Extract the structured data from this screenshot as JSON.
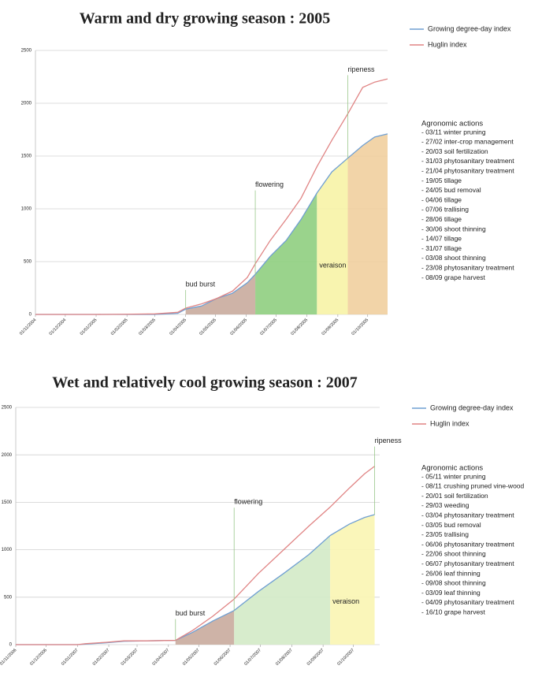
{
  "chart_data": [
    {
      "type": "line",
      "title": "Warm and dry growing season : 2005",
      "x": [
        0,
        30,
        61,
        92,
        120,
        143,
        151,
        167,
        182,
        198,
        213,
        221,
        236,
        252,
        267,
        283,
        298,
        314,
        329,
        341,
        354
      ],
      "xlim": [
        0,
        354
      ],
      "xticks": [
        {
          "value": 0,
          "label": "01/11/2004"
        },
        {
          "value": 30,
          "label": "01/12/2004"
        },
        {
          "value": 61,
          "label": "01/01/2005"
        },
        {
          "value": 92,
          "label": "01/02/2005"
        },
        {
          "value": 120,
          "label": "01/03/2005"
        },
        {
          "value": 151,
          "label": "01/04/2005"
        },
        {
          "value": 181,
          "label": "01/05/2005"
        },
        {
          "value": 212,
          "label": "01/06/2005"
        },
        {
          "value": 242,
          "label": "01/07/2005"
        },
        {
          "value": 273,
          "label": "01/08/2005"
        },
        {
          "value": 304,
          "label": "01/09/2005"
        },
        {
          "value": 334,
          "label": "01/10/2005"
        }
      ],
      "ylim": [
        0,
        2500
      ],
      "yticks": [
        0,
        500,
        1000,
        1500,
        2000,
        2500
      ],
      "grid": true,
      "series": [
        {
          "name": "Growing degree-day index",
          "color": "#6f9fd2",
          "values": [
            0,
            0,
            0,
            0,
            0,
            10,
            50,
            80,
            150,
            200,
            300,
            380,
            550,
            700,
            900,
            1150,
            1350,
            1480,
            1600,
            1680,
            1710
          ]
        },
        {
          "name": "Huglin index",
          "color": "#e08484",
          "values": [
            0,
            0,
            0,
            2,
            5,
            20,
            60,
            100,
            150,
            220,
            350,
            480,
            700,
            900,
            1100,
            1400,
            1650,
            1900,
            2150,
            2200,
            2230
          ]
        }
      ],
      "phases": [
        {
          "label": "bud burst",
          "x": 151,
          "color": "#c9ab9d"
        },
        {
          "label": "flowering",
          "x": 221,
          "color": "#8fce7f"
        },
        {
          "label": "veraison",
          "x": 283,
          "color": "#f7f3a6"
        },
        {
          "label": "ripeness",
          "x": 314,
          "color": "#f1cf9f"
        }
      ],
      "actions": {
        "title": "Agronomic actions",
        "items": [
          "- 03/11 winter pruning",
          "- 27/02 inter-crop management",
          "- 20/03 soil fertilization",
          "- 31/03 phytosanitary treatment",
          "- 21/04 phytosanitary treatment",
          "- 19/05 tillage",
          "- 24/05 bud removal",
          "- 04/06 tillage",
          "- 07/06 trallising",
          "- 28/06 tillage",
          "- 30/06 shoot thinning",
          "- 14/07 tillage",
          "- 31/07 tillage",
          "- 03/08 shoot thinning",
          "- 23/08 phytosanitary treatment",
          "- 08/09 grape harvest"
        ]
      }
    },
    {
      "type": "line",
      "title": "Wet and relatively cool growing season : 2007",
      "x": [
        0,
        30,
        61,
        69,
        90,
        107,
        130,
        158,
        175,
        195,
        216,
        240,
        265,
        290,
        311,
        330,
        345,
        355
      ],
      "xlim": [
        0,
        360
      ],
      "xticks": [
        {
          "value": 0,
          "label": "01/11/2006"
        },
        {
          "value": 30,
          "label": "01/12/2006"
        },
        {
          "value": 61,
          "label": "01/01/2007"
        },
        {
          "value": 92,
          "label": "01/02/2007"
        },
        {
          "value": 120,
          "label": "01/03/2007"
        },
        {
          "value": 151,
          "label": "01/04/2007"
        },
        {
          "value": 181,
          "label": "01/05/2007"
        },
        {
          "value": 212,
          "label": "01/06/2007"
        },
        {
          "value": 242,
          "label": "01/07/2007"
        },
        {
          "value": 273,
          "label": "01/08/2007"
        },
        {
          "value": 304,
          "label": "01/09/2007"
        },
        {
          "value": 334,
          "label": "01/10/2007"
        }
      ],
      "ylim": [
        0,
        2500
      ],
      "yticks": [
        0,
        500,
        1000,
        1500,
        2000,
        2500
      ],
      "grid": true,
      "series": [
        {
          "name": "Growing degree-day index",
          "color": "#6f9fd2",
          "values": [
            0,
            0,
            0,
            5,
            20,
            35,
            40,
            45,
            130,
            250,
            360,
            560,
            750,
            950,
            1150,
            1270,
            1340,
            1370
          ]
        },
        {
          "name": "Huglin index",
          "color": "#e08484",
          "values": [
            0,
            0,
            0,
            10,
            25,
            40,
            40,
            45,
            150,
            300,
            480,
            750,
            1000,
            1250,
            1450,
            1650,
            1800,
            1880
          ]
        }
      ],
      "phases": [
        {
          "label": "bud burst",
          "x": 158,
          "color": "#c9ab9d"
        },
        {
          "label": "flowering",
          "x": 216,
          "color": "#d3eac6"
        },
        {
          "label": "veraison",
          "x": 311,
          "color": "#f9f5b2"
        },
        {
          "label": "ripeness",
          "x": 355,
          "color": "#f9f5b2"
        }
      ],
      "actions": {
        "title": "Agronomic actions",
        "items": [
          "- 05/11 winter pruning",
          "- 08/11 crushing pruned vine-wood",
          "- 20/01 soil fertilization",
          "- 29/03 weeding",
          "- 03/04 phytosanitary treatment",
          "- 03/05 bud removal",
          "- 23/05 trallising",
          "- 06/06 phytosanitary treatment",
          "- 22/06 shoot thinning",
          "- 06/07 phytosanitary treatment",
          "- 26/06 leaf thinning",
          "- 09/08 shoot thinning",
          "- 03/09 leaf thinning",
          "- 04/09 phytosanitary treatment",
          "- 16/10 grape harvest"
        ]
      }
    }
  ]
}
